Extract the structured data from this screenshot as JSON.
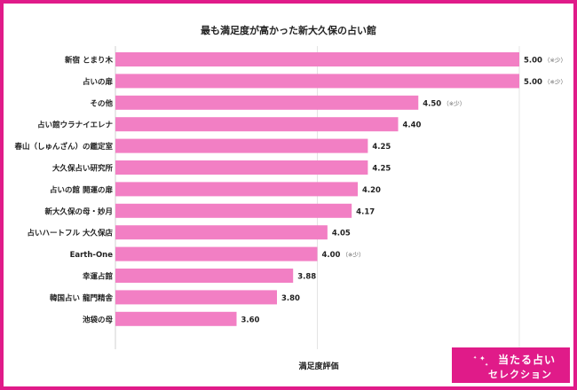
{
  "chart_data": {
    "type": "bar",
    "orientation": "horizontal",
    "title": "最も満足度が高かった新大久保の占い館",
    "xlabel": "満足度評価",
    "bar_color": "#f27fc4",
    "xlim": [
      3.0,
      5.0
    ],
    "gridlines": [
      3.0,
      4.0,
      5.0
    ],
    "categories": [
      "新宿 とまり木",
      "占いの扉",
      "その他",
      "占い館ウラナイエレナ",
      "春山（しゅんざん）の鑑定室",
      "大久保占い研究所",
      "占いの館 開運の扉",
      "新大久保の母・妙月",
      "占いハートフル 大久保店",
      "Earth-One",
      "幸運占館",
      "韓国占い 龍門精舎",
      "池袋の母"
    ],
    "values": [
      5.0,
      5.0,
      4.5,
      4.4,
      4.25,
      4.25,
      4.2,
      4.17,
      4.05,
      4.0,
      3.88,
      3.8,
      3.6
    ],
    "labels": [
      "5.00",
      "5.00",
      "4.50",
      "4.40",
      "4.25",
      "4.25",
      "4.20",
      "4.17",
      "4.05",
      "4.00",
      "3.88",
      "3.80",
      "3.60"
    ],
    "notes": [
      "（※少）",
      "（※少）",
      "（※少）",
      "",
      "",
      "",
      "",
      "",
      "",
      "（※少）",
      "",
      "",
      ""
    ]
  },
  "logo": {
    "line1": "当たる占い",
    "line2": "セレクション"
  }
}
